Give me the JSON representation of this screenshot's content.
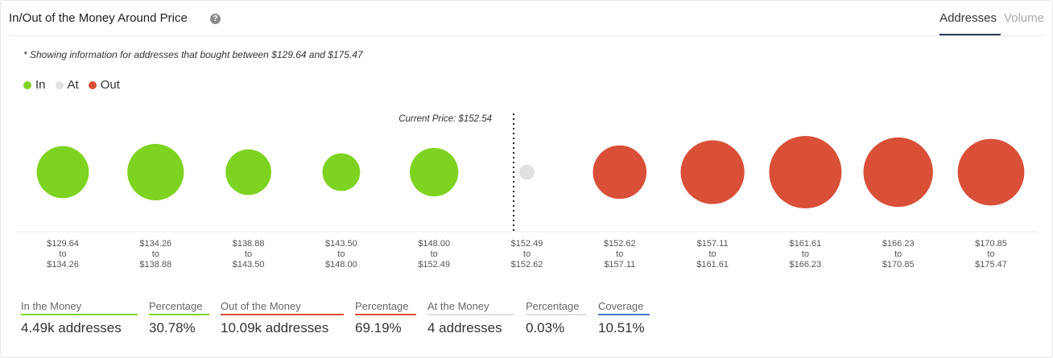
{
  "header": {
    "title": "In/Out of the Money Around Price",
    "help_icon": "?",
    "tabs": [
      {
        "label": "Addresses",
        "active": true
      },
      {
        "label": "Volume",
        "active": false
      }
    ]
  },
  "note": "* Showing information for addresses that bought between $129.64 and $175.47",
  "legend": [
    {
      "label": "In",
      "color": "#7ed321"
    },
    {
      "label": "At",
      "color": "#e0e0e0"
    },
    {
      "label": "Out",
      "color": "#d94f38"
    }
  ],
  "colors": {
    "in": "#7ed321",
    "at": "#e0e0e0",
    "out": "#d94f38"
  },
  "current_price_label": "Current Price: $152.54",
  "chart_data": {
    "type": "scatter",
    "categories": [
      {
        "from": "$129.64",
        "to": "$134.26",
        "status": "in",
        "relative_size": 0.72
      },
      {
        "from": "$134.26",
        "to": "$138.88",
        "status": "in",
        "relative_size": 0.78
      },
      {
        "from": "$138.88",
        "to": "$143.50",
        "status": "in",
        "relative_size": 0.63
      },
      {
        "from": "$143.50",
        "to": "$148.00",
        "status": "in",
        "relative_size": 0.52
      },
      {
        "from": "$148.00",
        "to": "$152.49",
        "status": "in",
        "relative_size": 0.67
      },
      {
        "from": "$152.49",
        "to": "$152.62",
        "status": "at",
        "relative_size": 0.21
      },
      {
        "from": "$152.62",
        "to": "$157.11",
        "status": "out",
        "relative_size": 0.74
      },
      {
        "from": "$157.11",
        "to": "$161.61",
        "status": "out",
        "relative_size": 0.88
      },
      {
        "from": "$161.61",
        "to": "$166.23",
        "status": "out",
        "relative_size": 1.0
      },
      {
        "from": "$166.23",
        "to": "$170.85",
        "status": "out",
        "relative_size": 0.96
      },
      {
        "from": "$170.85",
        "to": "$175.47",
        "status": "out",
        "relative_size": 0.92
      }
    ],
    "range_connector": "to",
    "current_price": 152.54
  },
  "summary": [
    {
      "label": "In the Money",
      "value": "4.49k addresses",
      "underline": "#7ed321"
    },
    {
      "label": "Percentage",
      "value": "30.78%",
      "underline": "#7ed321"
    },
    {
      "label": "Out of the Money",
      "value": "10.09k addresses",
      "underline": "#d94f38"
    },
    {
      "label": "Percentage",
      "value": "69.19%",
      "underline": "#d94f38"
    },
    {
      "label": "At the Money",
      "value": "4 addresses",
      "underline": "#e0e0e0"
    },
    {
      "label": "Percentage",
      "value": "0.03%",
      "underline": "#e0e0e0"
    },
    {
      "label": "Coverage",
      "value": "10.51%",
      "underline": "#4a78c4"
    }
  ]
}
